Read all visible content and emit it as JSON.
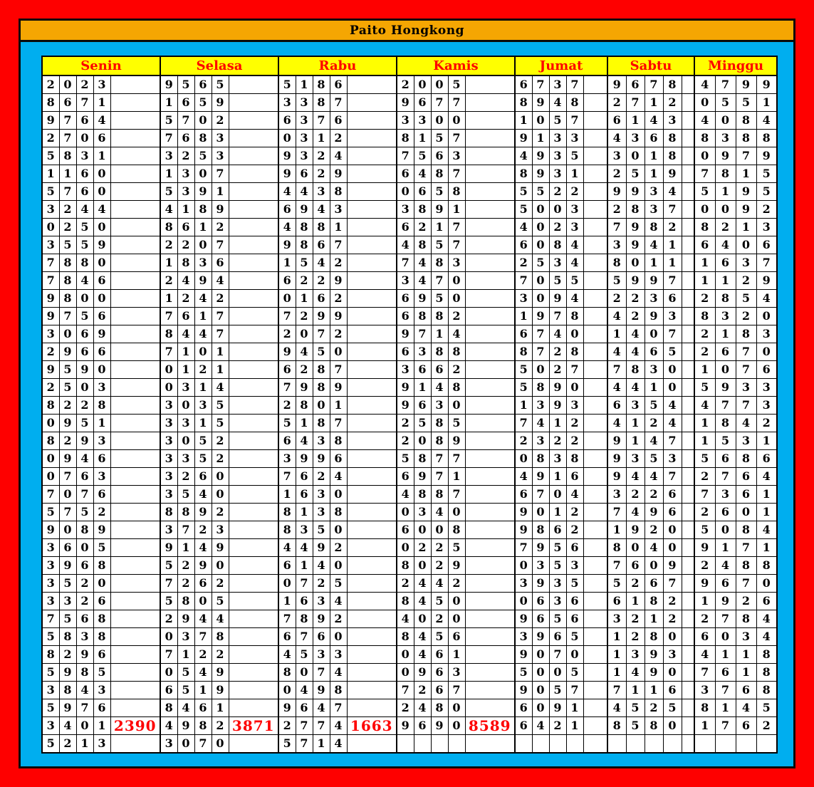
{
  "title": "Paito Hongkong",
  "days": [
    "Senin",
    "Selasa",
    "Rabu",
    "Kamis",
    "Jumat",
    "Sabtu",
    "Minggu"
  ],
  "colors": {
    "frame_red": "#FE0000",
    "panel_cyan": "#00AEEF",
    "title_orange": "#F5A602",
    "header_yellow": "#FFFF00",
    "header_text_red": "#FE0000",
    "highlight_blue": "#29ABE2",
    "highlight_yellow": "#FFFF00",
    "highlight_orange": "#F9A602",
    "highlight_red": "#FE0000",
    "digit_black": "#000000",
    "digit_yellow_on_blue": "#EFF400",
    "digit_greenyellow_on_blue": "#C8EC3F",
    "digit_dark_red": "#A00000",
    "summary_red": "#FE0000"
  },
  "style_code_legend": {
    "-": "white bg / black digit",
    "b": "blue bg / black digit",
    "B": "blue bg / yellow digit",
    "g": "blue bg / green-yellow digit",
    "d": "blue bg / red digit",
    "r": "red bg / black digit",
    "R": "red bg / dark-red digit",
    "o": "orange bg / black digit",
    "O": "orange bg / red digit",
    "y": "yellow bg / black digit",
    "Y": "yellow bg / red digit"
  },
  "rows": [
    [
      {
        "d": "2023"
      },
      {
        "d": "9565"
      },
      {
        "d": "5186"
      },
      {
        "d": "2005"
      },
      {
        "d": "6737"
      },
      {
        "d": "9678"
      },
      {
        "d": "4799"
      }
    ],
    [
      {
        "d": "8671"
      },
      {
        "d": "1659"
      },
      {
        "d": "3387"
      },
      {
        "d": "9677"
      },
      {
        "d": "8948"
      },
      {
        "d": "2712"
      },
      {
        "d": "0551"
      }
    ],
    [
      {
        "d": "9764"
      },
      {
        "d": "5702"
      },
      {
        "d": "6376"
      },
      {
        "d": "3300"
      },
      {
        "d": "1057"
      },
      {
        "d": "6143"
      },
      {
        "d": "4084"
      }
    ],
    [
      {
        "d": "2706"
      },
      {
        "d": "7683"
      },
      {
        "d": "0312"
      },
      {
        "d": "8157"
      },
      {
        "d": "9133"
      },
      {
        "d": "4368"
      },
      {
        "d": "8388"
      }
    ],
    [
      {
        "d": "5831"
      },
      {
        "d": "3253"
      },
      {
        "d": "9324"
      },
      {
        "d": "7563"
      },
      {
        "d": "4935"
      },
      {
        "d": "3018"
      },
      {
        "d": "0979"
      }
    ],
    [
      {
        "d": "1160"
      },
      {
        "d": "1307"
      },
      {
        "d": "9629"
      },
      {
        "d": "6487"
      },
      {
        "d": "8931"
      },
      {
        "d": "2519"
      },
      {
        "d": "7815"
      }
    ],
    [
      {
        "d": "5760"
      },
      {
        "d": "5391"
      },
      {
        "d": "4438"
      },
      {
        "d": "0658"
      },
      {
        "d": "5522"
      },
      {
        "d": "9934"
      },
      {
        "d": "5195"
      }
    ],
    [
      {
        "d": "3244"
      },
      {
        "d": "4189"
      },
      {
        "d": "6943"
      },
      {
        "d": "3891"
      },
      {
        "d": "5003"
      },
      {
        "d": "2837"
      },
      {
        "d": "0092"
      }
    ],
    [
      {
        "d": "0250"
      },
      {
        "d": "8612"
      },
      {
        "d": "4881"
      },
      {
        "d": "6217"
      },
      {
        "d": "4023"
      },
      {
        "d": "7982"
      },
      {
        "d": "8213"
      }
    ],
    [
      {
        "d": "3559"
      },
      {
        "d": "2207"
      },
      {
        "d": "9867"
      },
      {
        "d": "4857"
      },
      {
        "d": "6084"
      },
      {
        "d": "3941"
      },
      {
        "d": "6406"
      }
    ],
    [
      {
        "d": "7880"
      },
      {
        "d": "1836"
      },
      {
        "d": "1542"
      },
      {
        "d": "7483"
      },
      {
        "d": "2534"
      },
      {
        "d": "8011"
      },
      {
        "d": "1637"
      }
    ],
    [
      {
        "d": "7846"
      },
      {
        "d": "2494"
      },
      {
        "d": "6229"
      },
      {
        "d": "3470"
      },
      {
        "d": "7055"
      },
      {
        "d": "5997"
      },
      {
        "d": "1129"
      }
    ],
    [
      {
        "d": "9800"
      },
      {
        "d": "1242"
      },
      {
        "d": "0162"
      },
      {
        "d": "6950"
      },
      {
        "d": "3094"
      },
      {
        "d": "2236"
      },
      {
        "d": "2854"
      }
    ],
    [
      {
        "d": "9756"
      },
      {
        "d": "7617"
      },
      {
        "d": "7299"
      },
      {
        "d": "6882"
      },
      {
        "d": "1978"
      },
      {
        "d": "4293"
      },
      {
        "d": "8320"
      }
    ],
    [
      {
        "d": "3069"
      },
      {
        "d": "8447"
      },
      {
        "d": "2072"
      },
      {
        "d": "9714"
      },
      {
        "d": "6740"
      },
      {
        "d": "1407"
      },
      {
        "d": "2183"
      }
    ],
    [
      {
        "d": "2966"
      },
      {
        "d": "7101"
      },
      {
        "d": "9450"
      },
      {
        "d": "6388"
      },
      {
        "d": "8728"
      },
      {
        "d": "4465"
      },
      {
        "d": "2670"
      }
    ],
    [
      {
        "d": "9590"
      },
      {
        "d": "0121"
      },
      {
        "d": "6287"
      },
      {
        "d": "3662"
      },
      {
        "d": "5027"
      },
      {
        "d": "7830"
      },
      {
        "d": "1076"
      }
    ],
    [
      {
        "d": "2503"
      },
      {
        "d": "0314"
      },
      {
        "d": "7989"
      },
      {
        "d": "9148"
      },
      {
        "d": "5890"
      },
      {
        "d": "4410"
      },
      {
        "d": "5933"
      }
    ],
    [
      {
        "d": "8228"
      },
      {
        "d": "3035"
      },
      {
        "d": "2801"
      },
      {
        "d": "9630"
      },
      {
        "d": "1393"
      },
      {
        "d": "6354"
      },
      {
        "d": "4773"
      }
    ],
    [
      {
        "d": "0951",
        "s": "---B"
      },
      {
        "d": "3315",
        "s": "---b"
      },
      {
        "d": "5187",
        "s": "---b"
      },
      {
        "d": "2585",
        "s": "---B"
      },
      {
        "d": "7412"
      },
      {
        "d": "4124"
      },
      {
        "d": "1842"
      }
    ],
    [
      {
        "d": "8293",
        "s": "---b"
      },
      {
        "d": "3052",
        "s": "---b"
      },
      {
        "d": "6438",
        "s": "---b"
      },
      {
        "d": "2089",
        "s": "---B"
      },
      {
        "d": "2322"
      },
      {
        "d": "9147"
      },
      {
        "d": "1531"
      }
    ],
    [
      {
        "d": "0946",
        "s": "---b"
      },
      {
        "d": "3352",
        "s": "---b"
      },
      {
        "d": "3996",
        "s": "---b"
      },
      {
        "d": "5877",
        "s": "---B"
      },
      {
        "d": "0838"
      },
      {
        "d": "9353"
      },
      {
        "d": "5686"
      }
    ],
    [
      {
        "d": "0763",
        "s": "bbbB"
      },
      {
        "d": "3260",
        "s": "bbbB"
      },
      {
        "d": "7624",
        "s": "bbbB"
      },
      {
        "d": "6971",
        "s": "BBBB"
      },
      {
        "d": "4916"
      },
      {
        "d": "9447"
      },
      {
        "d": "2764"
      }
    ],
    [
      {
        "d": "7076"
      },
      {
        "d": "3540"
      },
      {
        "d": "1630"
      },
      {
        "d": "4887"
      },
      {
        "d": "6704"
      },
      {
        "d": "3226"
      },
      {
        "d": "7361"
      }
    ],
    [
      {
        "d": "5752"
      },
      {
        "d": "8892"
      },
      {
        "d": "8138"
      },
      {
        "d": "0340"
      },
      {
        "d": "9012"
      },
      {
        "d": "7496"
      },
      {
        "d": "2601"
      }
    ],
    [
      {
        "d": "9089"
      },
      {
        "d": "3723"
      },
      {
        "d": "8350"
      },
      {
        "d": "6008"
      },
      {
        "d": "9862"
      },
      {
        "d": "1920"
      },
      {
        "d": "5084"
      }
    ],
    [
      {
        "d": "3605"
      },
      {
        "d": "9149"
      },
      {
        "d": "4492"
      },
      {
        "d": "0225"
      },
      {
        "d": "7956"
      },
      {
        "d": "8040"
      },
      {
        "d": "9171"
      }
    ],
    [
      {
        "d": "3968",
        "s": "Oyyy"
      },
      {
        "d": "5290",
        "s": "oyyy"
      },
      {
        "d": "6140",
        "s": "oyyy"
      },
      {
        "d": "8029",
        "s": "Oyyy"
      },
      {
        "d": "0353"
      },
      {
        "d": "7609"
      },
      {
        "d": "2488"
      }
    ],
    [
      {
        "d": "3520",
        "s": "Oyyy"
      },
      {
        "d": "7262",
        "s": "Oyyy"
      },
      {
        "d": "0725",
        "s": "oyyy"
      },
      {
        "d": "2442",
        "s": "Oyyy"
      },
      {
        "d": "3935"
      },
      {
        "d": "5267"
      },
      {
        "d": "9670"
      }
    ],
    [
      {
        "d": "3326",
        "s": "Oyy-"
      },
      {
        "d": "5805",
        "s": "yyy-"
      },
      {
        "d": "1634",
        "s": "Oyy-"
      },
      {
        "d": "8450",
        "s": "Oyy-"
      },
      {
        "d": "0636"
      },
      {
        "d": "6182"
      },
      {
        "d": "1926"
      }
    ],
    [
      {
        "d": "7568",
        "s": "o---"
      },
      {
        "d": "2944",
        "s": "o---"
      },
      {
        "d": "7892",
        "s": "o---"
      },
      {
        "d": "4020",
        "s": "O---"
      },
      {
        "d": "9656"
      },
      {
        "d": "3212"
      },
      {
        "d": "2784"
      }
    ],
    [
      {
        "d": "5838",
        "s": "rR--"
      },
      {
        "d": "0378",
        "s": "rR--"
      },
      {
        "d": "6760",
        "s": "rR--"
      },
      {
        "d": "8456",
        "s": "Rr--"
      },
      {
        "d": "3965"
      },
      {
        "d": "1280"
      },
      {
        "d": "6034"
      }
    ],
    [
      {
        "d": "8296",
        "s": "rR--"
      },
      {
        "d": "7122",
        "s": "rR--"
      },
      {
        "d": "4533",
        "s": "rR--"
      },
      {
        "d": "0461",
        "s": "Rr--"
      },
      {
        "d": "9070"
      },
      {
        "d": "1393"
      },
      {
        "d": "4118"
      }
    ],
    [
      {
        "d": "5985"
      },
      {
        "d": "0549"
      },
      {
        "d": "8074"
      },
      {
        "d": "0963"
      },
      {
        "d": "5005"
      },
      {
        "d": "1490"
      },
      {
        "d": "7618"
      }
    ],
    [
      {
        "d": "3843"
      },
      {
        "d": "6519"
      },
      {
        "d": "0498"
      },
      {
        "d": "7267"
      },
      {
        "d": "9057"
      },
      {
        "d": "7116"
      },
      {
        "d": "3768"
      }
    ],
    [
      {
        "d": "5976"
      },
      {
        "d": "8461"
      },
      {
        "d": "9647"
      },
      {
        "d": "2480"
      },
      {
        "d": "6091"
      },
      {
        "d": "4525"
      },
      {
        "d": "8145"
      }
    ],
    [
      {
        "d": "3401",
        "x": "2390"
      },
      {
        "d": "4982",
        "x": "3871"
      },
      {
        "d": "2774",
        "x": "1663"
      },
      {
        "d": "9690",
        "x": "8589"
      },
      {
        "d": "6421"
      },
      {
        "d": "8580"
      },
      {
        "d": "1762"
      }
    ],
    [
      {
        "d": "5213",
        "s": "rygO"
      },
      {
        "d": "3070",
        "s": "ryOg"
      },
      {
        "d": "5714",
        "s": "ryYd"
      },
      {
        "legend": [
          "r",
          "y",
          "b",
          "o"
        ]
      },
      {
        "d": ""
      },
      {
        "d": ""
      },
      {
        "d": ""
      }
    ]
  ]
}
